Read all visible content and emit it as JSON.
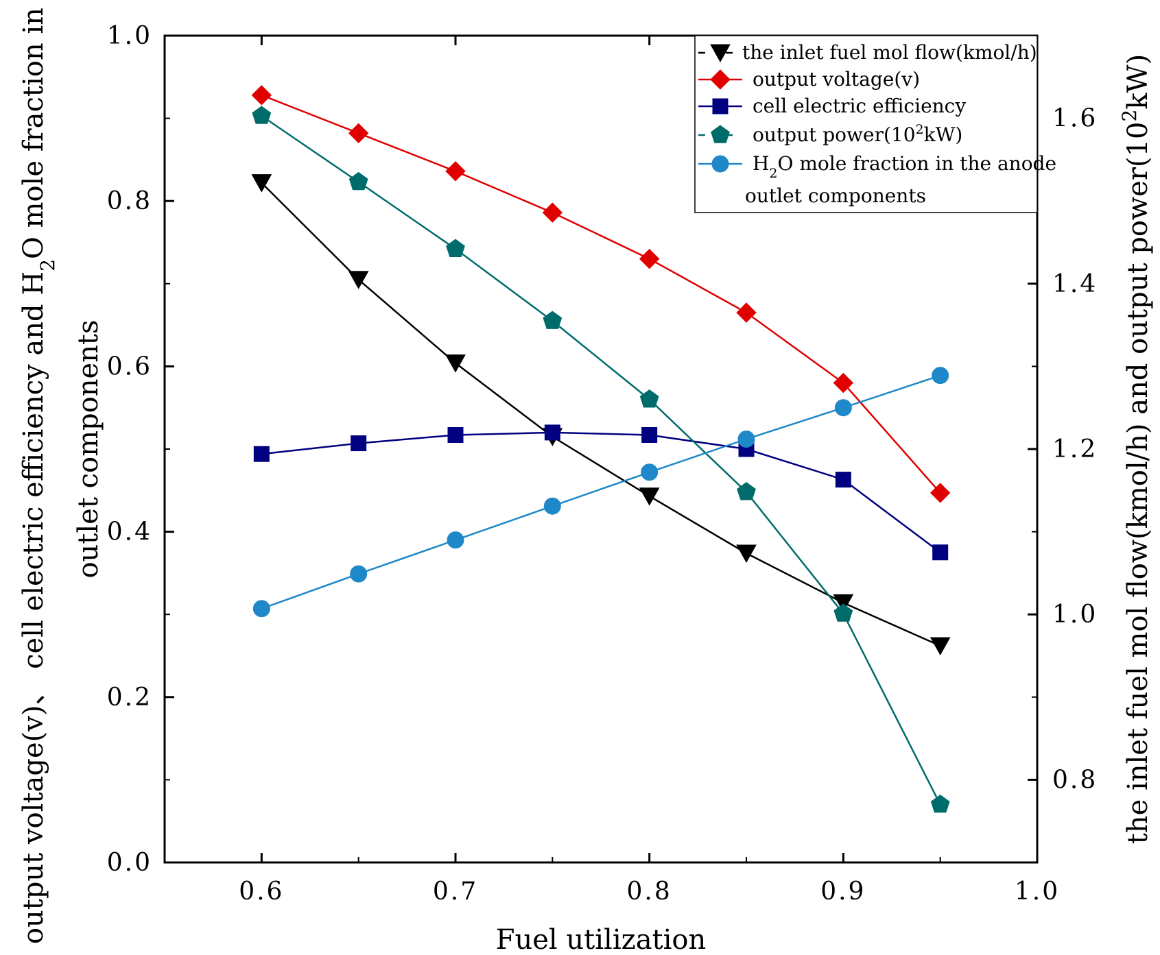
{
  "chart_data": {
    "type": "line",
    "xlabel": "Fuel utilization",
    "ylabel_left_line1": "output voltage(v)、 cell electric efficiency and H",
    "ylabel_left_sub": "2",
    "ylabel_left_line1_end": "O mole fraction in the",
    "ylabel_left_line2": "outlet components",
    "ylabel_right_main": "the inlet fuel mol flow(kmol/h) and output power(10",
    "ylabel_right_sup": "2",
    "ylabel_right_end": "kW)",
    "xlim": [
      0.55,
      1.0
    ],
    "ylim_left": [
      0.0,
      1.0
    ],
    "ylim_right": [
      0.7,
      1.7
    ],
    "x_ticks": [
      0.6,
      0.7,
      0.8,
      0.9,
      1.0
    ],
    "x_tick_labels": [
      "0.6",
      "0.7",
      "0.8",
      "0.9",
      "1.0"
    ],
    "y_left_ticks": [
      0.0,
      0.2,
      0.4,
      0.6,
      0.8,
      1.0
    ],
    "y_left_tick_labels": [
      "0.0",
      "0.2",
      "0.4",
      "0.6",
      "0.8",
      "1.0"
    ],
    "y_right_ticks": [
      0.8,
      1.0,
      1.2,
      1.4,
      1.6
    ],
    "y_right_tick_labels": [
      "0.8",
      "1.0",
      "1.2",
      "1.4",
      "1.6"
    ],
    "x": [
      0.6,
      0.65,
      0.7,
      0.75,
      0.8,
      0.85,
      0.9,
      0.95
    ],
    "legend_position": "top-right",
    "series": [
      {
        "name": "the inlet fuel mol flow(kmol/h)",
        "axis": "right",
        "marker": "triangle-down",
        "color": "#000000",
        "dashed": true,
        "values": [
          1.522,
          1.405,
          1.304,
          1.215,
          1.143,
          1.074,
          1.014,
          0.962
        ]
      },
      {
        "name": "output voltage(v)",
        "axis": "left",
        "marker": "diamond",
        "color": "#e00000",
        "values": [
          0.928,
          0.882,
          0.836,
          0.786,
          0.73,
          0.665,
          0.58,
          0.447
        ]
      },
      {
        "name": "cell electric efficiency",
        "axis": "left",
        "marker": "square",
        "color": "#000080",
        "values": [
          0.494,
          0.507,
          0.517,
          0.52,
          0.517,
          0.5,
          0.463,
          0.375
        ]
      },
      {
        "name": "output power(10",
        "name_sup": "2",
        "name_end": "kW)",
        "axis": "right",
        "marker": "pentagon",
        "color": "#006b6b",
        "dashed": true,
        "values": [
          1.603,
          1.523,
          1.442,
          1.355,
          1.26,
          1.148,
          1.001,
          0.77
        ]
      },
      {
        "name": "H",
        "name_sub": "2",
        "name_end": "O mole fraction in the anode",
        "name_line2": "outlet components",
        "axis": "left",
        "marker": "circle",
        "color": "#1f88c8",
        "values": [
          0.307,
          0.349,
          0.39,
          0.431,
          0.472,
          0.512,
          0.55,
          0.589
        ]
      }
    ]
  }
}
